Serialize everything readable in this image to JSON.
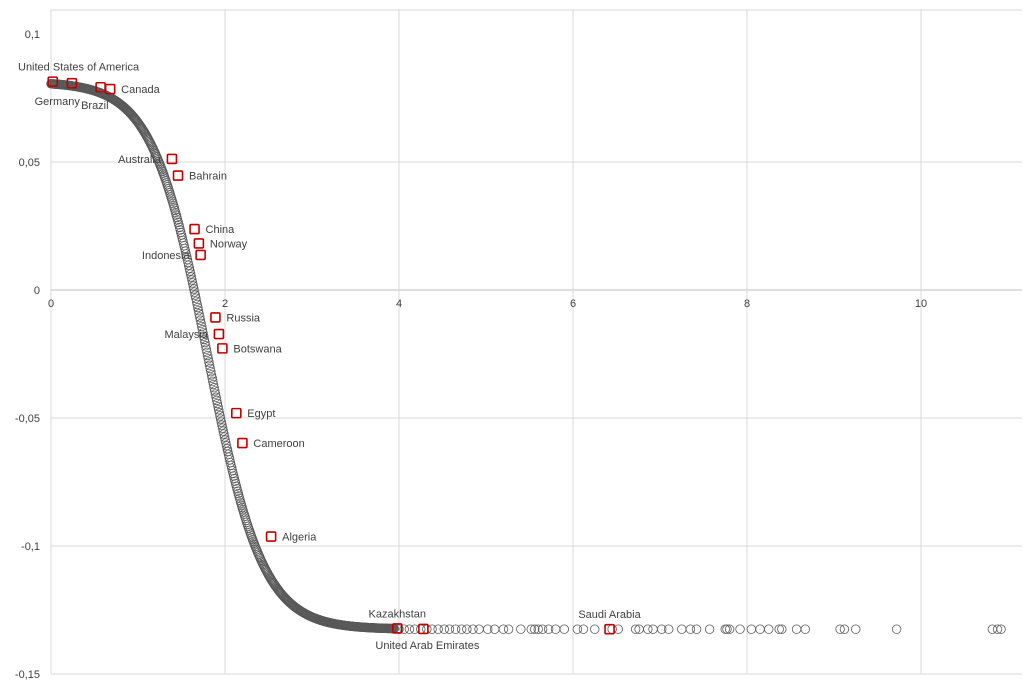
{
  "chart_data": {
    "type": "scatter",
    "title": "",
    "xlabel": "",
    "ylabel": "",
    "xlim": [
      0,
      11
    ],
    "ylim": [
      -0.15,
      0.1
    ],
    "grid": true,
    "legend": "none",
    "x_ticks": [
      {
        "value": 0,
        "label": "0"
      },
      {
        "value": 2,
        "label": "2"
      },
      {
        "value": 4,
        "label": "4"
      },
      {
        "value": 6,
        "label": "6"
      },
      {
        "value": 8,
        "label": "8"
      },
      {
        "value": 10,
        "label": "10"
      }
    ],
    "y_ticks": [
      {
        "value": 0.1,
        "label": "0,1"
      },
      {
        "value": 0.05,
        "label": "0,05"
      },
      {
        "value": 0,
        "label": "0"
      },
      {
        "value": -0.05,
        "label": "-0,05"
      },
      {
        "value": -0.1,
        "label": "-0,1"
      },
      {
        "value": -0.15,
        "label": "-0,15"
      }
    ],
    "marker_color": "#595959",
    "highlight_color": "#c00000",
    "curve": {
      "description_free": true,
      "upper_asymptote": 0.0813,
      "lower_asymptote": -0.1325,
      "midpoint_x": 1.8,
      "steepness": 3.15
    },
    "sparse_tail_x": [
      4.0,
      4.06,
      4.12,
      4.18,
      4.25,
      4.32,
      4.38,
      4.45,
      4.52,
      4.58,
      4.65,
      4.72,
      4.78,
      4.85,
      4.92,
      5.02,
      5.1,
      5.2,
      5.26,
      5.4,
      5.52,
      5.56,
      5.6,
      5.65,
      5.72,
      5.8,
      5.9,
      6.05,
      6.12,
      6.25,
      6.45,
      6.52,
      6.72,
      6.76,
      6.86,
      6.92,
      7.02,
      7.1,
      7.25,
      7.35,
      7.42,
      7.57,
      7.75,
      7.77,
      7.8,
      7.92,
      8.05,
      8.15,
      8.25,
      8.37,
      8.4,
      8.57,
      8.67,
      9.07,
      9.12,
      9.25,
      9.72,
      10.82,
      10.88,
      10.92
    ],
    "sparse_tail_y": -0.1325,
    "highlighted": [
      {
        "label": "United States of America",
        "x": 0.02,
        "y": 0.0814,
        "label_pos": "above"
      },
      {
        "label": "Germany",
        "x": 0.24,
        "y": 0.0808,
        "label_pos": "below-left"
      },
      {
        "label": "Brazil",
        "x": 0.57,
        "y": 0.0792,
        "label_pos": "below-left"
      },
      {
        "label": "Canada",
        "x": 0.68,
        "y": 0.0785,
        "label_pos": "right"
      },
      {
        "label": "Australia",
        "x": 1.39,
        "y": 0.0512,
        "label_pos": "left"
      },
      {
        "label": "Bahrain",
        "x": 1.46,
        "y": 0.0447,
        "label_pos": "right"
      },
      {
        "label": "China",
        "x": 1.65,
        "y": 0.0238,
        "label_pos": "right"
      },
      {
        "label": "Norway",
        "x": 1.7,
        "y": 0.0182,
        "label_pos": "right"
      },
      {
        "label": "Indonesia",
        "x": 1.72,
        "y": 0.0137,
        "label_pos": "left"
      },
      {
        "label": "Russia",
        "x": 1.89,
        "y": -0.0107,
        "label_pos": "right"
      },
      {
        "label": "Malaysia",
        "x": 1.93,
        "y": -0.0172,
        "label_pos": "left"
      },
      {
        "label": "Botswana",
        "x": 1.97,
        "y": -0.0228,
        "label_pos": "right"
      },
      {
        "label": "Egypt",
        "x": 2.13,
        "y": -0.0481,
        "label_pos": "right"
      },
      {
        "label": "Cameroon",
        "x": 2.2,
        "y": -0.0598,
        "label_pos": "right"
      },
      {
        "label": "Algeria",
        "x": 2.53,
        "y": -0.0963,
        "label_pos": "right"
      },
      {
        "label": "Kazakhstan",
        "x": 3.98,
        "y": -0.1322,
        "label_pos": "above"
      },
      {
        "label": "United Arab Emirates",
        "x": 4.28,
        "y": -0.1324,
        "label_pos": "below"
      },
      {
        "label": "Saudi Arabia",
        "x": 6.42,
        "y": -0.1325,
        "label_pos": "above"
      }
    ]
  }
}
